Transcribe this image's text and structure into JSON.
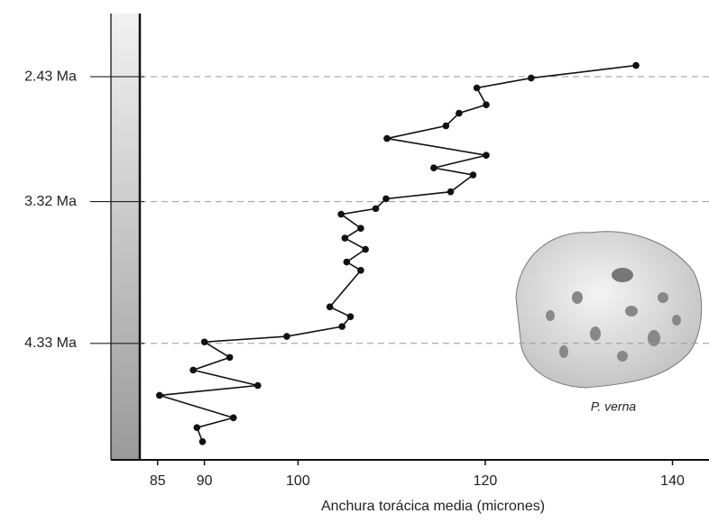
{
  "chart_data": {
    "type": "line",
    "x_label": "Anchura torácica media (micrones)",
    "annotation": "P. verna",
    "values": [
      136.1,
      124.9,
      119.1,
      120.1,
      117.2,
      115.8,
      109.5,
      120.1,
      114.5,
      118.7,
      116.3,
      109.4,
      108.3,
      104.6,
      106.7,
      105.0,
      107.2,
      105.2,
      106.7,
      103.4,
      105.6,
      104.7,
      98.8,
      90.0,
      92.7,
      88.8,
      95.7,
      85.2,
      93.1,
      89.2,
      89.8
    ],
    "ma": [
      2.35,
      2.44,
      2.51,
      2.63,
      2.69,
      2.78,
      2.87,
      2.99,
      3.08,
      3.13,
      3.25,
      3.3,
      3.37,
      3.41,
      3.51,
      3.58,
      3.66,
      3.75,
      3.81,
      4.07,
      4.14,
      4.21,
      4.28,
      4.32,
      4.43,
      4.52,
      4.63,
      4.7,
      4.86,
      4.93,
      5.03
    ],
    "color": "#111111",
    "xlim": [
      83.1,
      143.9
    ],
    "xticks": [
      85,
      90,
      100,
      120,
      140
    ],
    "ylim": [
      1.98,
      5.16
    ],
    "y_inverted": true,
    "yticks": [
      {
        "value": 2.43,
        "label": "2.43 Ma"
      },
      {
        "value": 3.32,
        "label": "3.32 Ma"
      },
      {
        "value": 4.33,
        "label": "4.33 Ma"
      }
    ],
    "grid": true
  }
}
